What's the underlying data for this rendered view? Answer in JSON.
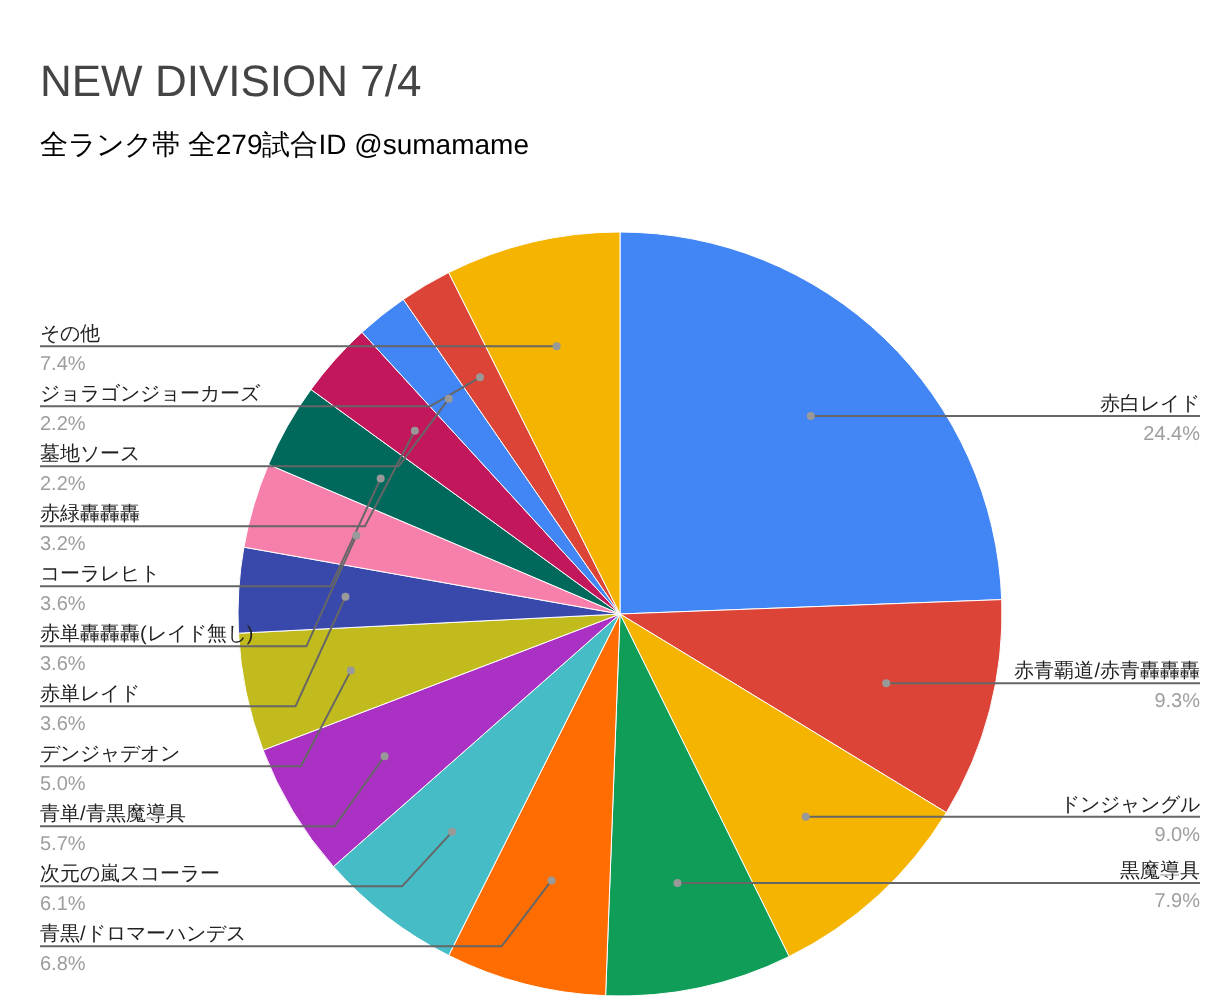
{
  "chart_data": {
    "type": "pie",
    "title": "NEW DIVISION 7/4",
    "subtitle": "全ランク帯 全279試合ID @sumamame",
    "categories": [
      "赤白レイド",
      "赤青覇道/赤青轟轟轟",
      "ドンジャングル",
      "黒魔導具",
      "青黒/ドロマーハンデス",
      "次元の嵐スコーラー",
      "青単/青黒魔導具",
      "デンジャデオン",
      "赤単レイド",
      "赤単轟轟轟(レイド無し)",
      "コーラレヒト",
      "赤緑轟轟轟",
      "墓地ソース",
      "ジョラゴンジョーカーズ",
      "その他"
    ],
    "values": [
      24.4,
      9.3,
      9.0,
      7.9,
      6.8,
      6.1,
      5.7,
      5.0,
      3.6,
      3.6,
      3.6,
      3.2,
      2.2,
      2.2,
      7.4
    ],
    "value_labels": [
      "24.4%",
      "9.3%",
      "9.0%",
      "7.9%",
      "6.8%",
      "6.1%",
      "5.7%",
      "5.0%",
      "3.6%",
      "3.6%",
      "3.6%",
      "3.2%",
      "2.2%",
      "2.2%",
      "7.4%"
    ],
    "colors": [
      "#4285f4",
      "#db4437",
      "#f4b400",
      "#0f9d58",
      "#ff6d01",
      "#46bdc6",
      "#ab30c4",
      "#c2bb1d",
      "#3949ab",
      "#f77fac",
      "#00695c",
      "#c2185b",
      "#4285f4",
      "#db4437",
      "#f4b400"
    ]
  }
}
